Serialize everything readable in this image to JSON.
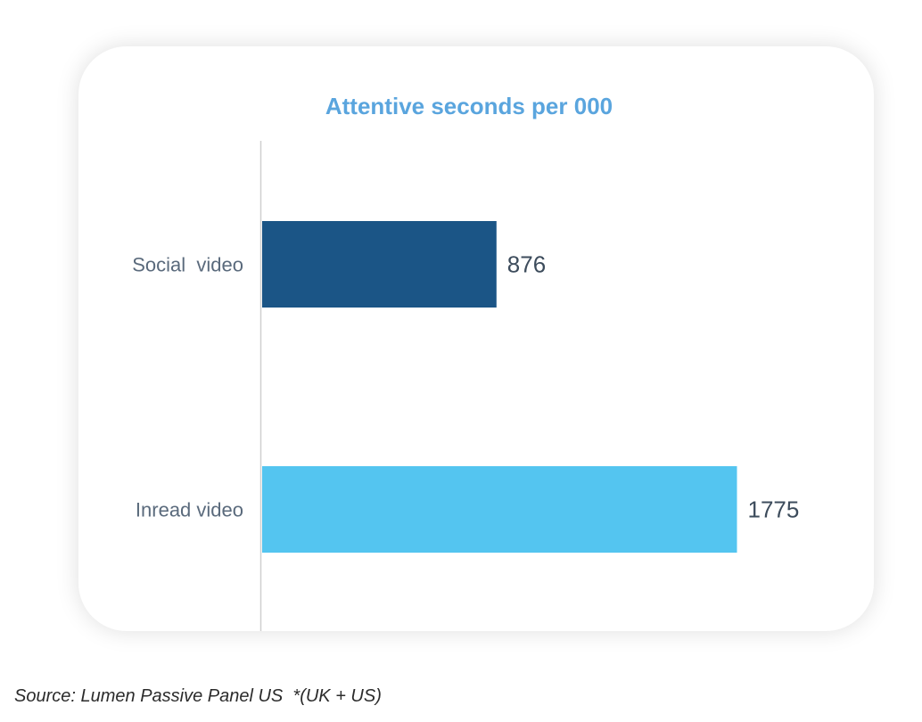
{
  "chart_data": {
    "type": "bar",
    "orientation": "horizontal",
    "title": "Attentive seconds per 000",
    "categories": [
      "Social  video",
      "Inread video"
    ],
    "values": [
      876,
      1775
    ],
    "value_labels": [
      "876",
      "1775"
    ],
    "xlim": [
      0,
      1900
    ],
    "xlabel": "",
    "ylabel": "",
    "grid": false,
    "legend": "none"
  },
  "colors": {
    "title": "#5aa5de",
    "bars": [
      "#1b5586",
      "#54c5f0"
    ],
    "category_text": "#5a6a7c",
    "value_text": "#3d4c5c",
    "axis": "#d0d0d0"
  },
  "footer": {
    "source": "Source: Lumen Passive Panel US",
    "note": "*(UK + US)"
  }
}
